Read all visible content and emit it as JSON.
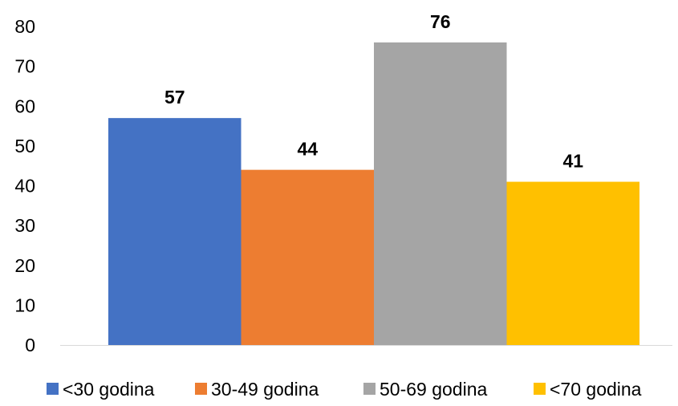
{
  "chart_data": {
    "type": "bar",
    "title": "",
    "xlabel": "",
    "ylabel": "",
    "ylim": [
      0,
      80
    ],
    "yticks": [
      0,
      10,
      20,
      30,
      40,
      50,
      60,
      70,
      80
    ],
    "grid": false,
    "legend_position": "bottom",
    "data_labels": true,
    "series": [
      {
        "name": "<30 godina",
        "values": [
          57
        ],
        "color": "#4472C4"
      },
      {
        "name": "30-49 godina",
        "values": [
          44
        ],
        "color": "#ED7D31"
      },
      {
        "name": "50-69 godina",
        "values": [
          76
        ],
        "color": "#A5A5A5"
      },
      {
        "name": "<70 godina",
        "values": [
          41
        ],
        "color": "#FFC000"
      }
    ]
  }
}
